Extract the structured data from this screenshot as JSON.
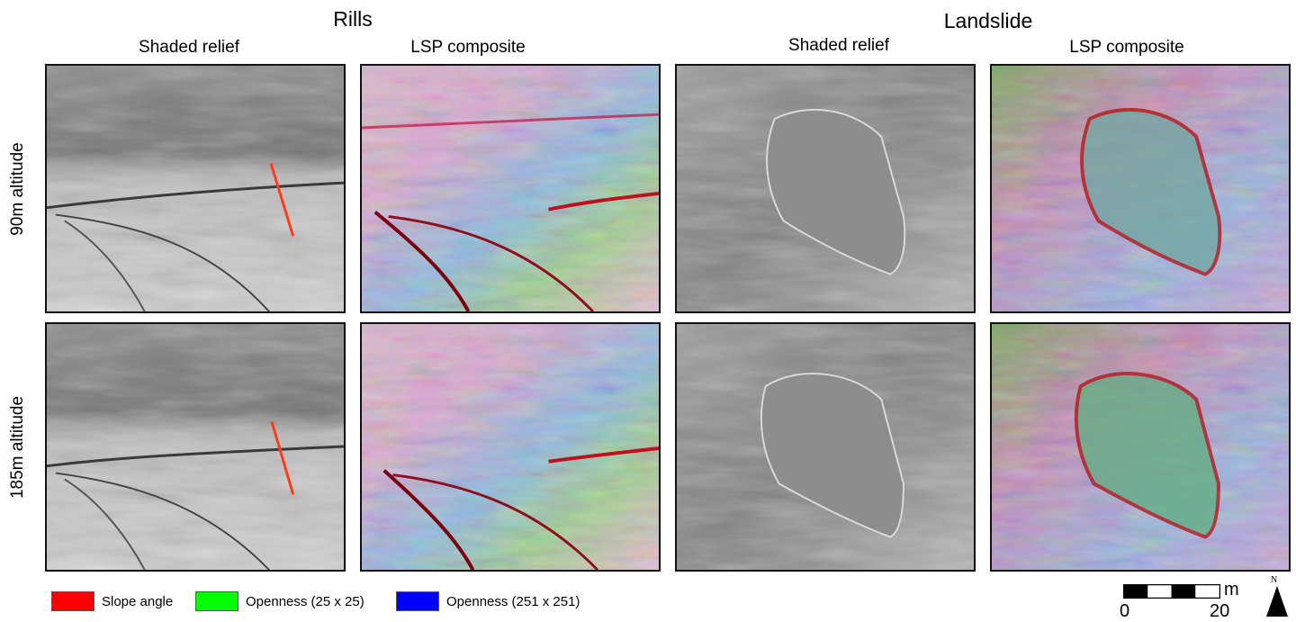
{
  "groups": [
    {
      "title": "Rills"
    },
    {
      "title": "Landslide"
    }
  ],
  "columns": [
    {
      "title": "Shaded relief"
    },
    {
      "title": "LSP composite"
    },
    {
      "title": "Shaded relief"
    },
    {
      "title": "LSP composite"
    }
  ],
  "rows": [
    {
      "label": "90m altitude"
    },
    {
      "label": "185m altitude"
    }
  ],
  "legend": [
    {
      "label": "Slope angle",
      "color": "#ff0000"
    },
    {
      "label": "Openness (25 x 25)",
      "color": "#00ff00"
    },
    {
      "label": "Openness (251 x 251)",
      "color": "#0000ff"
    }
  ],
  "scale_bar": {
    "unit": "m",
    "start": "0",
    "end": "20"
  },
  "north_arrow": {
    "label": "N"
  },
  "colors": {
    "profile_line": "#ff3b1a"
  }
}
